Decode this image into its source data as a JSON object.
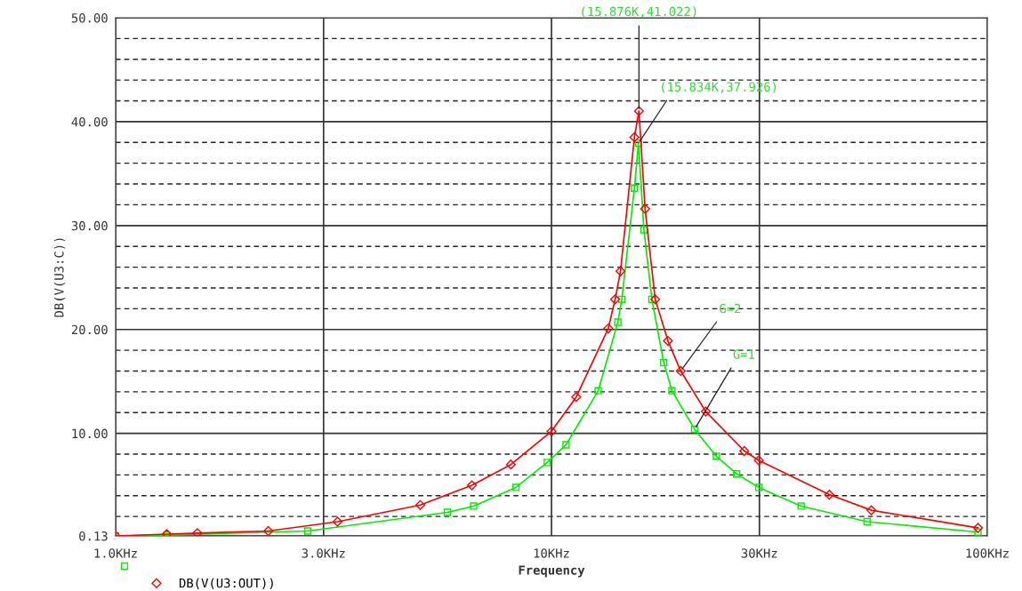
{
  "chart_data": {
    "type": "line",
    "xlabel": "Frequency",
    "ylabel": "DB(V(U3:C))",
    "log": "x",
    "xlim": [
      1,
      100
    ],
    "xticks": [
      {
        "value": 1,
        "label": "1.0KHz"
      },
      {
        "value": 3,
        "label": "3.0KHz"
      },
      {
        "value": 10,
        "label": "10KHz"
      },
      {
        "value": 30,
        "label": "30KHz"
      },
      {
        "value": 100,
        "label": "100KHz"
      }
    ],
    "ylim": [
      0.13,
      50
    ],
    "yticks": [
      {
        "value": 0.13,
        "label": "0.13"
      },
      {
        "value": 2,
        "label": null
      },
      {
        "value": 4,
        "label": null
      },
      {
        "value": 6,
        "label": null
      },
      {
        "value": 8,
        "label": null
      },
      {
        "value": 10,
        "label": "10.00"
      },
      {
        "value": 12,
        "label": null
      },
      {
        "value": 14,
        "label": null
      },
      {
        "value": 16,
        "label": null
      },
      {
        "value": 18,
        "label": null
      },
      {
        "value": 20,
        "label": "20.00"
      },
      {
        "value": 22,
        "label": null
      },
      {
        "value": 24,
        "label": null
      },
      {
        "value": 26,
        "label": null
      },
      {
        "value": 28,
        "label": null
      },
      {
        "value": 30,
        "label": "30.00"
      },
      {
        "value": 32,
        "label": null
      },
      {
        "value": 34,
        "label": null
      },
      {
        "value": 36,
        "label": null
      },
      {
        "value": 38,
        "label": null
      },
      {
        "value": 40,
        "label": "40.00"
      },
      {
        "value": 42,
        "label": null
      },
      {
        "value": 44,
        "label": null
      },
      {
        "value": 46,
        "label": null
      },
      {
        "value": 48,
        "label": null
      },
      {
        "value": 50,
        "label": "50.00"
      }
    ],
    "grid": true,
    "legend": "bottom left",
    "line_style": "solid",
    "series": [
      {
        "color": "#00ee00",
        "marker": "square",
        "x": [
          1.0,
          1.31,
          2.76,
          5.77,
          6.63,
          8.29,
          9.78,
          10.8,
          12.8,
          14.2,
          14.5,
          15.5,
          15.834,
          16.3,
          17.0,
          18.1,
          18.9,
          21.3,
          23.9,
          26.6,
          29.9,
          37.4,
          53.0,
          95.2
        ],
        "values": [
          0.13,
          0.2,
          0.6,
          2.4,
          3.0,
          4.8,
          7.2,
          8.9,
          14.1,
          20.7,
          22.9,
          33.6,
          37.926,
          29.6,
          22.9,
          16.8,
          14.1,
          10.4,
          7.8,
          6.1,
          4.8,
          3.0,
          1.5,
          0.5
        ]
      },
      {
        "name": "DB(V(U3:OUT))",
        "color": "#ff0000",
        "marker": "diamond",
        "x": [
          1.0,
          1.31,
          1.54,
          2.24,
          3.23,
          5.0,
          6.57,
          8.07,
          10.0,
          11.4,
          13.5,
          14.0,
          14.4,
          15.5,
          15.876,
          16.4,
          17.3,
          18.5,
          19.8,
          22.6,
          27.7,
          29.9,
          43.4,
          54.2,
          95.2
        ],
        "values": [
          0.13,
          0.3,
          0.4,
          0.6,
          1.5,
          3.1,
          5.0,
          7.0,
          10.2,
          13.5,
          20.1,
          22.9,
          25.6,
          38.5,
          41.022,
          31.6,
          22.9,
          18.9,
          16.0,
          12.1,
          8.3,
          7.4,
          4.1,
          2.6,
          0.9
        ]
      }
    ],
    "annotations": [
      {
        "text": "(15.876K,41.022)",
        "x": 15.876,
        "y": 41.022
      },
      {
        "text": "(15.834K,37.926)",
        "x": 15.834,
        "y": 37.926
      },
      {
        "text": "G=2",
        "x": 19.8,
        "y": 16.0
      },
      {
        "text": "G=1",
        "x": 21.3,
        "y": 10.4
      }
    ]
  }
}
